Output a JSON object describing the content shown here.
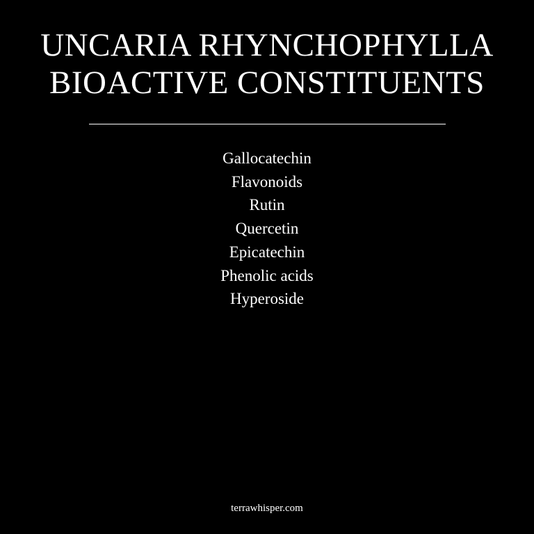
{
  "title": {
    "line1": "UNCARIA RHYNCHOPHYLLA",
    "line2": "BIOACTIVE CONSTITUENTS"
  },
  "constituents": [
    "Gallocatechin",
    "Flavonoids",
    "Rutin",
    "Quercetin",
    "Epicatechin",
    "Phenolic acids",
    "Hyperoside"
  ],
  "footer": {
    "site": "terrawhisper.com"
  },
  "colors": {
    "background": "#000000",
    "text": "#ffffff"
  }
}
